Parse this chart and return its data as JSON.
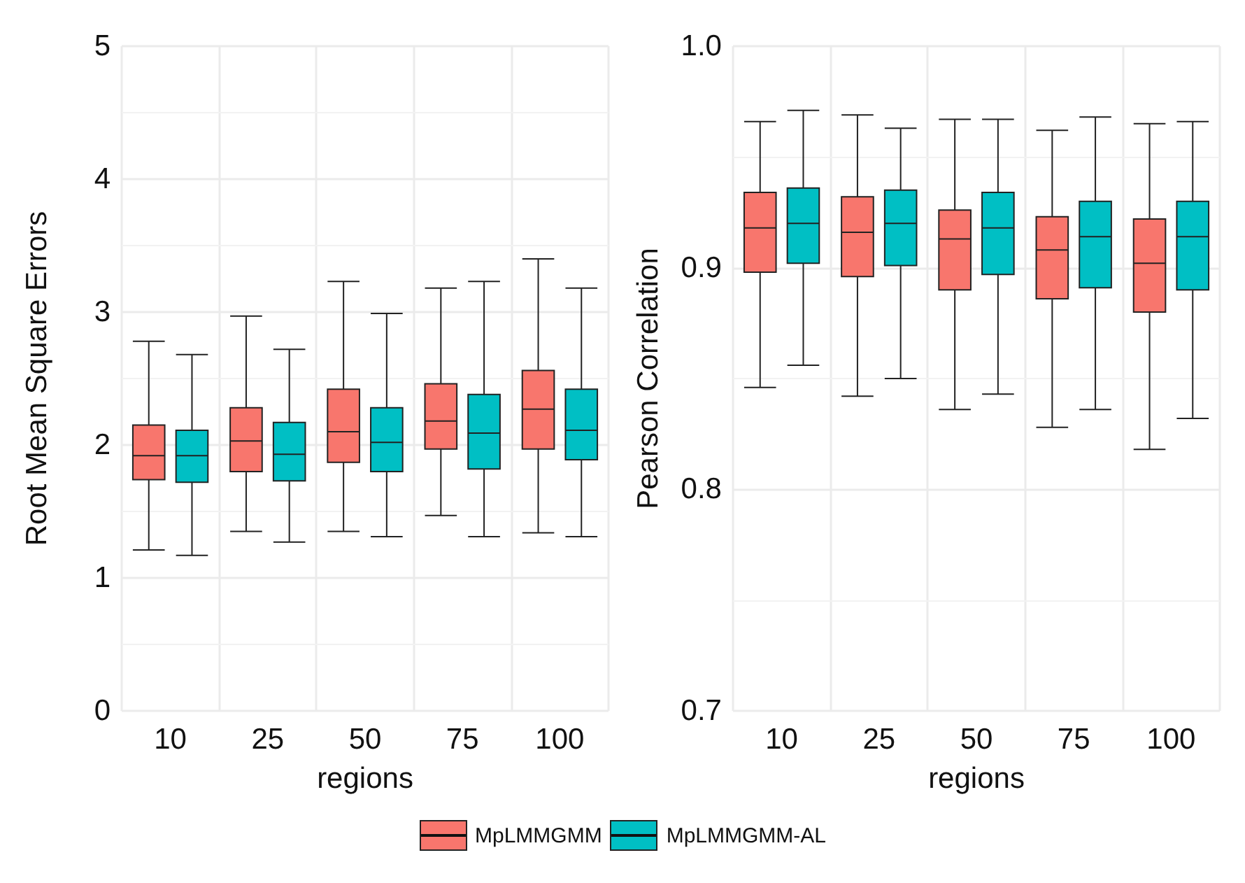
{
  "chart_data": [
    {
      "type": "box",
      "xlabel": "regions",
      "ylabel": "Root Mean Square Errors",
      "categories": [
        "10",
        "25",
        "50",
        "75",
        "100"
      ],
      "ylim": [
        0,
        5
      ],
      "yticks": [
        0,
        1,
        2,
        3,
        4,
        5
      ],
      "grid": true,
      "legend": "bottom",
      "series": [
        {
          "name": "MpLMMGMM",
          "color": "#f8766d",
          "boxes": [
            {
              "low": 1.21,
              "q1": 1.74,
              "median": 1.92,
              "q3": 2.15,
              "high": 2.78
            },
            {
              "low": 1.35,
              "q1": 1.8,
              "median": 2.03,
              "q3": 2.28,
              "high": 2.97
            },
            {
              "low": 1.35,
              "q1": 1.87,
              "median": 2.1,
              "q3": 2.42,
              "high": 3.23
            },
            {
              "low": 1.47,
              "q1": 1.97,
              "median": 2.18,
              "q3": 2.46,
              "high": 3.18
            },
            {
              "low": 1.34,
              "q1": 1.97,
              "median": 2.27,
              "q3": 2.56,
              "high": 3.4
            }
          ]
        },
        {
          "name": "MpLMMGMM-AL",
          "color": "#00bfc4",
          "boxes": [
            {
              "low": 1.17,
              "q1": 1.72,
              "median": 1.92,
              "q3": 2.11,
              "high": 2.68
            },
            {
              "low": 1.27,
              "q1": 1.73,
              "median": 1.93,
              "q3": 2.17,
              "high": 2.72
            },
            {
              "low": 1.31,
              "q1": 1.8,
              "median": 2.02,
              "q3": 2.28,
              "high": 2.99
            },
            {
              "low": 1.31,
              "q1": 1.82,
              "median": 2.09,
              "q3": 2.38,
              "high": 3.23
            },
            {
              "low": 1.31,
              "q1": 1.89,
              "median": 2.11,
              "q3": 2.42,
              "high": 3.18
            }
          ]
        }
      ]
    },
    {
      "type": "box",
      "xlabel": "regions",
      "ylabel": "Pearson Correlation",
      "categories": [
        "10",
        "25",
        "50",
        "75",
        "100"
      ],
      "ylim": [
        0.7,
        1
      ],
      "yticks": [
        0.7,
        0.8,
        0.9,
        {
          "value": 1,
          "label": "1.0"
        }
      ],
      "grid": true,
      "series": [
        {
          "color": "#f8766d",
          "boxes": [
            {
              "low": 0.846,
              "q1": 0.898,
              "median": 0.918,
              "q3": 0.934,
              "high": 0.966
            },
            {
              "low": 0.842,
              "q1": 0.896,
              "median": 0.916,
              "q3": 0.932,
              "high": 0.969
            },
            {
              "low": 0.836,
              "q1": 0.89,
              "median": 0.913,
              "q3": 0.926,
              "high": 0.967
            },
            {
              "low": 0.828,
              "q1": 0.886,
              "median": 0.908,
              "q3": 0.923,
              "high": 0.962
            },
            {
              "low": 0.818,
              "q1": 0.88,
              "median": 0.902,
              "q3": 0.922,
              "high": 0.965
            }
          ]
        },
        {
          "color": "#00bfc4",
          "boxes": [
            {
              "low": 0.856,
              "q1": 0.902,
              "median": 0.92,
              "q3": 0.936,
              "high": 0.971
            },
            {
              "low": 0.85,
              "q1": 0.901,
              "median": 0.92,
              "q3": 0.935,
              "high": 0.963
            },
            {
              "low": 0.843,
              "q1": 0.897,
              "median": 0.918,
              "q3": 0.934,
              "high": 0.967
            },
            {
              "low": 0.836,
              "q1": 0.891,
              "median": 0.914,
              "q3": 0.93,
              "high": 0.968
            },
            {
              "low": 0.832,
              "q1": 0.89,
              "median": 0.914,
              "q3": 0.93,
              "high": 0.966
            }
          ]
        }
      ]
    }
  ]
}
